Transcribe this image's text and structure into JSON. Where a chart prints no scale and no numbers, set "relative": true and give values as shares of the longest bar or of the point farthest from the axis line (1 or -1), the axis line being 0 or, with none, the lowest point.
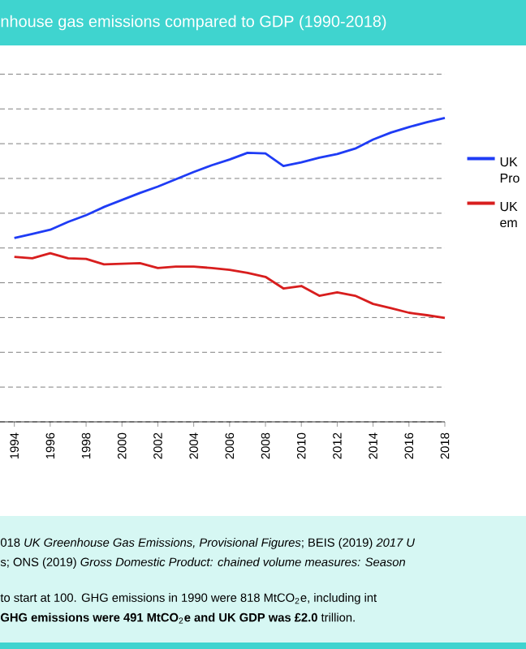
{
  "chart_data": {
    "type": "line",
    "title": "nhouse gas emissions compared to GDP (1990-2018)",
    "relative": true,
    "x": [
      1994,
      1995,
      1996,
      1997,
      1998,
      1999,
      2000,
      2001,
      2002,
      2003,
      2004,
      2005,
      2006,
      2007,
      2008,
      2009,
      2010,
      2011,
      2012,
      2013,
      2014,
      2015,
      2016,
      2017,
      2018
    ],
    "xlim": [
      1993.2,
      2018
    ],
    "xticks": [
      1994,
      1996,
      1998,
      2000,
      2002,
      2004,
      2006,
      2008,
      2010,
      2012,
      2014,
      2016,
      2018
    ],
    "series": [
      {
        "name": "UK Pro",
        "color": "#1f3cf5",
        "values": [
          0.605,
          0.618,
          0.632,
          0.658,
          0.68,
          0.707,
          0.73,
          0.753,
          0.774,
          0.798,
          0.822,
          0.844,
          0.863,
          0.885,
          0.883,
          0.842,
          0.854,
          0.869,
          0.881,
          0.899,
          0.929,
          0.952,
          0.97,
          0.986,
          1.0
        ]
      },
      {
        "name": "UK em",
        "color": "#d81e1e",
        "values": [
          0.543,
          0.538,
          0.555,
          0.538,
          0.536,
          0.518,
          0.52,
          0.522,
          0.506,
          0.511,
          0.511,
          0.506,
          0.5,
          0.49,
          0.477,
          0.439,
          0.447,
          0.415,
          0.426,
          0.415,
          0.388,
          0.374,
          0.359,
          0.351,
          0.342
        ]
      }
    ],
    "grid": "y",
    "legend": "right",
    "line_style": "solid",
    "annotations": [
      "018 *UK Greenhouse Gas Emissions, Provisional Figures*; BEIS (2019) *2017 U*",
      "s; ONS (2019) *Gross Domestic Product: chained volume measures: Season*",
      "to start at 100. GHG emissions in 1990 were 818 MtCO$_{2}$e, including int",
      "**GHG emissions were 491 MtCO**$_{2}$**e and UK GDP was £2.0** trillion."
    ]
  }
}
